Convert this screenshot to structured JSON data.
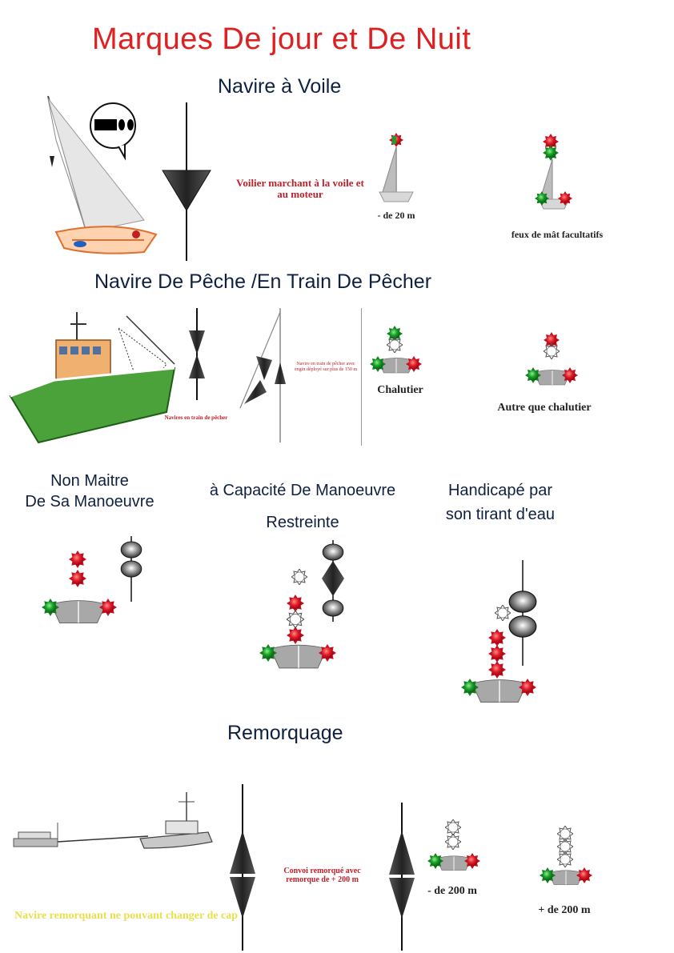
{
  "title": "Marques De jour et De Nuit",
  "sections": {
    "voile": {
      "heading": "Navire à Voile",
      "caption_motor": "Voilier marchant à la voile et au moteur",
      "caption_small": "- de 20 m",
      "caption_optional": "feux de mât facultatifs"
    },
    "peche": {
      "heading": "Navire De Pêche /En Train De Pêcher",
      "caption_fishing": "Navires en train de pêcher",
      "caption_gear": "Navire en train de pêcher avec engin déployé sur plus de 150 m",
      "caption_trawler": "Chalutier",
      "caption_other": "Autre que chalutier"
    },
    "nonmaitre": {
      "heading_line1": "Non Maitre",
      "heading_line2": "De Sa Manoeuvre"
    },
    "capacite": {
      "heading_line1": "à Capacité De Manoeuvre",
      "heading_line2": "Restreinte"
    },
    "handicape": {
      "heading_line1": "Handicapé par",
      "heading_line2": "son tirant d'eau"
    },
    "remorquage": {
      "heading": "Remorquage",
      "caption_tow": "Convoi remorqué avec remorque de + 200 m",
      "caption_under200": "- de 200 m",
      "caption_over200": "+ de 200 m",
      "caption_cannot_turn": "Navire remorquant ne pouvant changer de cap"
    }
  },
  "colors": {
    "title": "#e02020",
    "heading": "#0f2040",
    "light_red": "#e0202a",
    "light_green": "#1aa02a",
    "hull": "#a8a8a8",
    "caption_yellow": "#e7e050"
  }
}
